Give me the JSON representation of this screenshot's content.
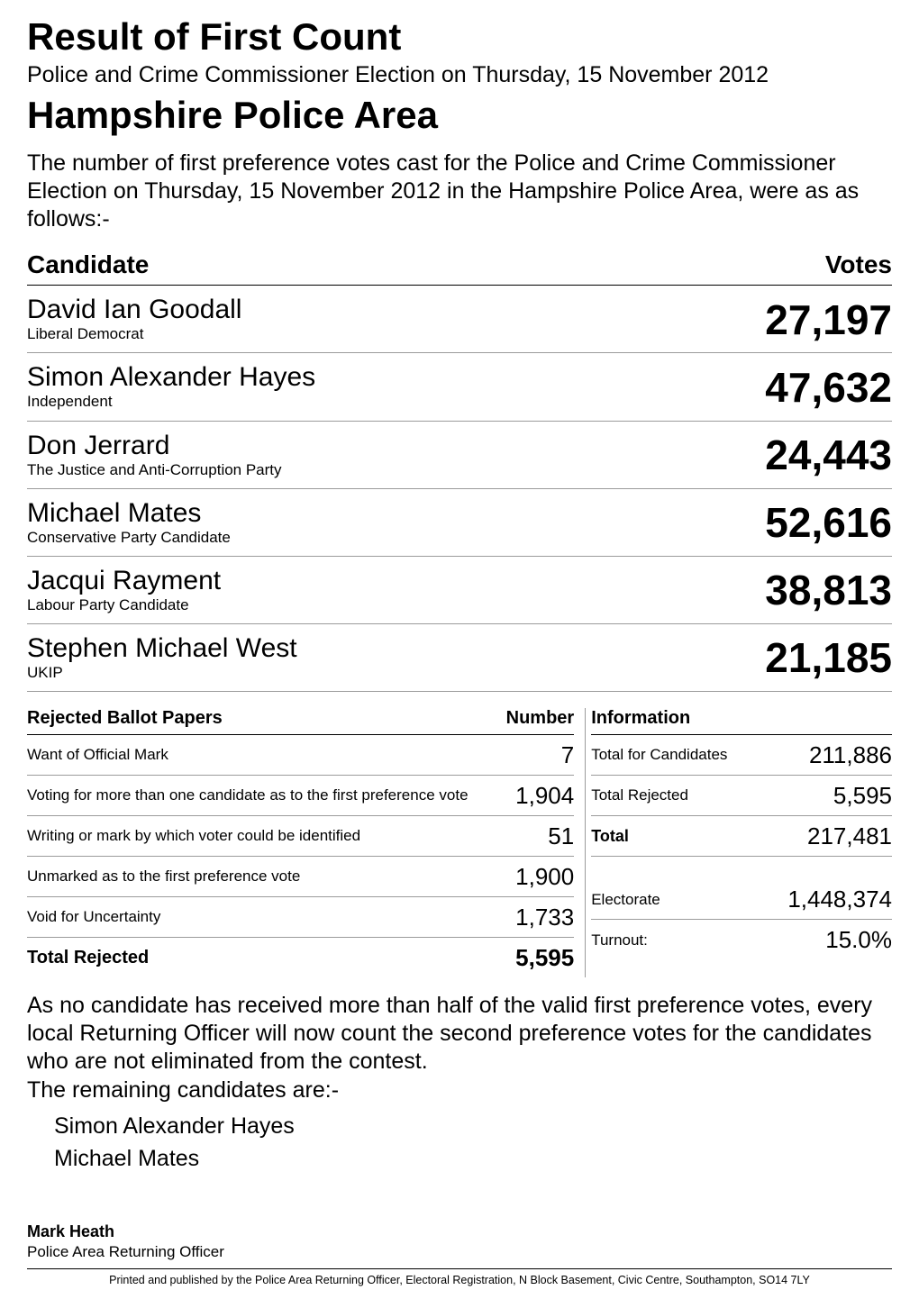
{
  "header": {
    "h1": "Result of First Count",
    "subtitle": "Police and Crime Commissioner Election on Thursday, 15 November 2012",
    "h2": "Hampshire Police Area",
    "intro": "The number of first preference votes cast for the Police and Crime Commissioner Election on Thursday, 15 November 2012 in the Hampshire Police Area, were as as follows:-"
  },
  "candidate_table": {
    "columns": [
      "Candidate",
      "Votes"
    ],
    "rows": [
      {
        "name": "David Ian Goodall",
        "party": "Liberal Democrat",
        "votes": "27,197"
      },
      {
        "name": "Simon Alexander Hayes",
        "party": "Independent",
        "votes": "47,632"
      },
      {
        "name": "Don Jerrard",
        "party": "The Justice and Anti-Corruption Party",
        "votes": "24,443"
      },
      {
        "name": "Michael Mates",
        "party": "Conservative Party Candidate",
        "votes": "52,616"
      },
      {
        "name": "Jacqui Rayment",
        "party": "Labour Party Candidate",
        "votes": "38,813"
      },
      {
        "name": "Stephen Michael West",
        "party": "UKIP",
        "votes": "21,185"
      }
    ],
    "votes_fontsize": 46,
    "name_fontsize": 30,
    "party_fontsize": 17,
    "border_color": "#9b9b9b"
  },
  "rejected_table": {
    "title": "Rejected Ballot Papers",
    "num_title": "Number",
    "rows": [
      {
        "label": "Want of Official Mark",
        "num": "7"
      },
      {
        "label": "Voting for more than one candidate as to the first preference vote",
        "num": "1,904"
      },
      {
        "label": "Writing or mark by which voter could be identified",
        "num": "51"
      },
      {
        "label": "Unmarked as to the first preference vote",
        "num": "1,900"
      },
      {
        "label": "Void for Uncertainty",
        "num": "1,733"
      }
    ],
    "total_label": "Total Rejected",
    "total_num": "5,595"
  },
  "info_table": {
    "title": "Information",
    "rows": [
      {
        "label": "Total for Candidates",
        "num": "211,886",
        "bold": false
      },
      {
        "label": "Total Rejected",
        "num": "5,595",
        "bold": false
      },
      {
        "label": "Total",
        "num": "217,481",
        "bold": true
      }
    ],
    "extra": [
      {
        "label": "Electorate",
        "num": "1,448,374"
      },
      {
        "label": "Turnout:",
        "num": "15.0%"
      }
    ]
  },
  "conclusion": {
    "para1": "As no candidate has received more than half of the valid first preference votes, every local Returning Officer will now count the second preference votes for the candidates who are not eliminated from the contest.",
    "para2": "The remaining candidates are:-",
    "remaining": [
      "Simon Alexander Hayes",
      "Michael Mates"
    ]
  },
  "footer": {
    "sign_name": "Mark Heath",
    "sign_role": "Police Area Returning Officer",
    "note": "Printed and published by the Police Area Returning Officer, Electoral Registration, N Block Basement, Civic Centre, Southampton, SO14 7LY"
  },
  "colors": {
    "text": "#000000",
    "background": "#ffffff",
    "rule": "#9b9b9b",
    "heavy_rule": "#000000"
  }
}
